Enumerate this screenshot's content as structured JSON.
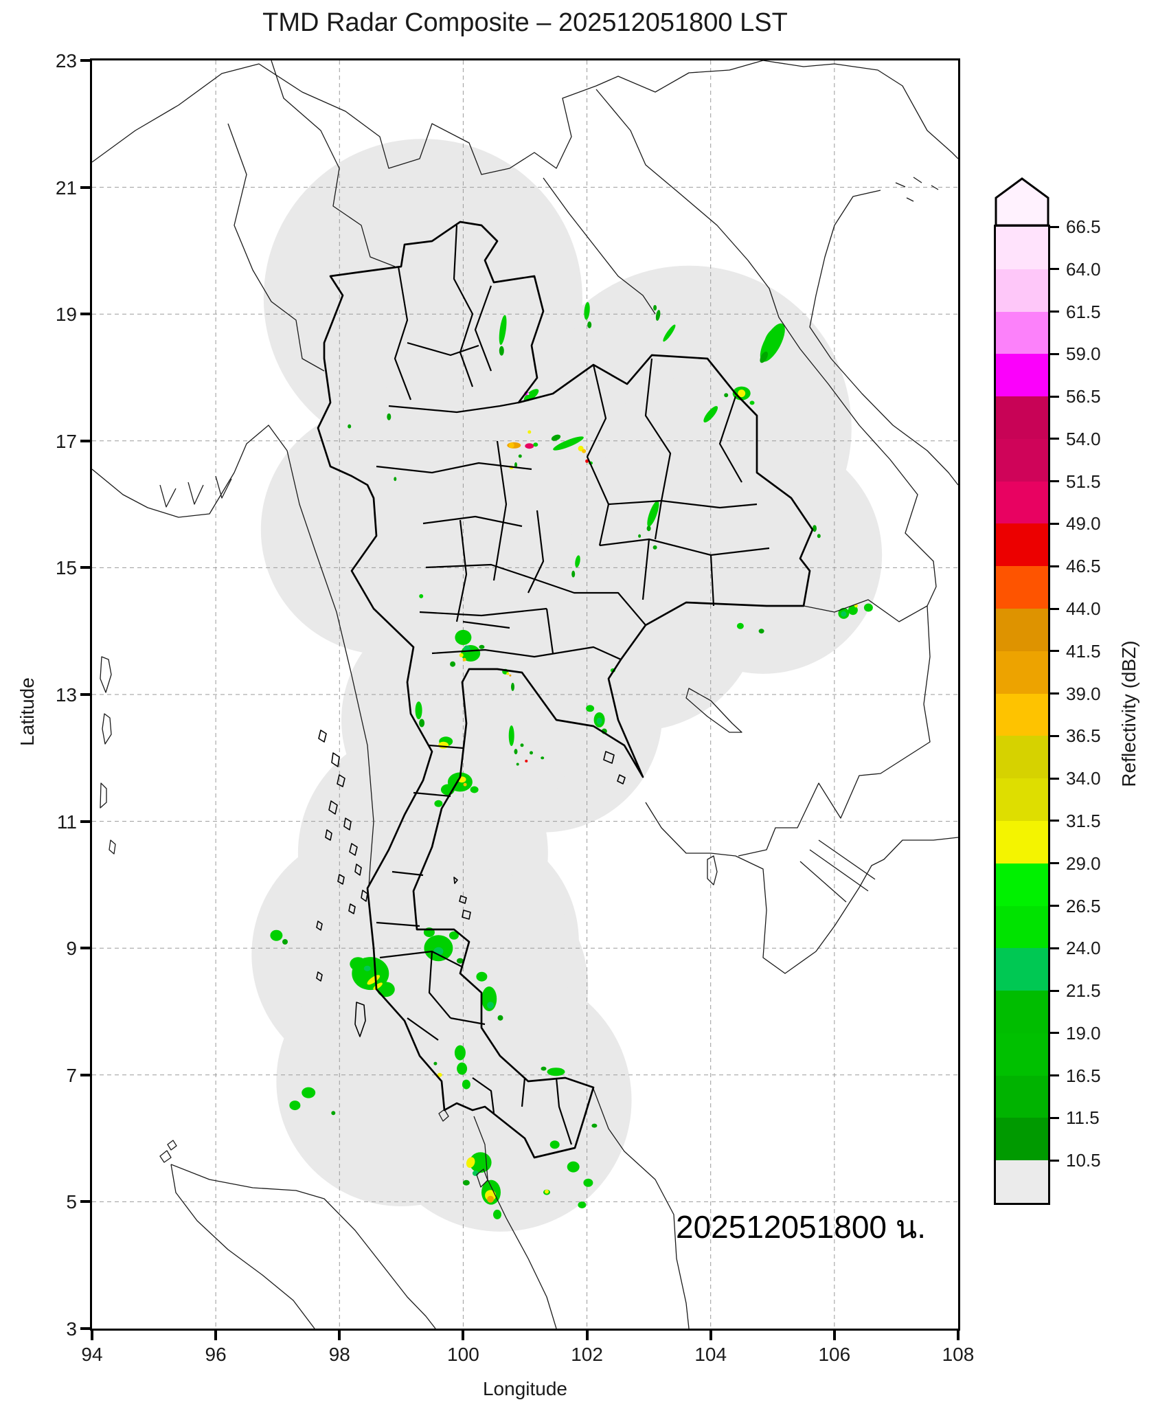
{
  "title": "TMD Radar Composite – 202512051800 LST",
  "timestamp_label": "202512051800 น.",
  "axes": {
    "xlabel": "Longitude",
    "ylabel": "Latitude",
    "x_range": [
      94,
      108
    ],
    "y_range": [
      3,
      23
    ],
    "x_ticks": [
      94,
      96,
      98,
      100,
      102,
      104,
      106,
      108
    ],
    "y_ticks": [
      3,
      5,
      7,
      9,
      11,
      13,
      15,
      17,
      19,
      21,
      23
    ],
    "grid_color": "#9a9a9a"
  },
  "colorbar": {
    "label": "Reflectivity (dBZ)",
    "tick_labels": [
      "66.5",
      "64.0",
      "61.5",
      "59.0",
      "56.5",
      "54.0",
      "51.5",
      "49.0",
      "46.5",
      "44.0",
      "41.5",
      "39.0",
      "36.5",
      "34.0",
      "31.5",
      "29.0",
      "26.5",
      "24.0",
      "21.5",
      "19.0",
      "16.5",
      "11.5",
      "10.5"
    ],
    "segment_colors_top_to_bottom": [
      "#ffe3fc",
      "#fec7f9",
      "#fc81fa",
      "#fb01fb",
      "#c80356",
      "#cf0459",
      "#e80261",
      "#ec0000",
      "#fe5400",
      "#de9300",
      "#eda300",
      "#fec300",
      "#d6d200",
      "#dede00",
      "#f4f400",
      "#00f100",
      "#00e300",
      "#00c853",
      "#00bd00",
      "#00c000",
      "#00b300",
      "#009a00",
      "#ebebeb"
    ],
    "arrow_color": "#fff2fe",
    "under_range_color": "#ebebeb"
  },
  "map": {
    "coverage_color": "#e9e9e9",
    "country_border_color": "#1a1a1a",
    "thailand_border_color": "#000000",
    "coverage_circles": [
      {
        "lon": 99.35,
        "lat": 19.25,
        "r": 2.55
      },
      {
        "lon": 103.65,
        "lat": 17.2,
        "r": 2.6
      },
      {
        "lon": 104.85,
        "lat": 15.2,
        "r": 1.9
      },
      {
        "lon": 102.2,
        "lat": 16.4,
        "r": 2.0
      },
      {
        "lon": 100.65,
        "lat": 17.15,
        "r": 2.0
      },
      {
        "lon": 98.75,
        "lat": 15.6,
        "r": 2.0
      },
      {
        "lon": 102.8,
        "lat": 14.4,
        "r": 2.0
      },
      {
        "lon": 101.2,
        "lat": 15.2,
        "r": 1.9
      },
      {
        "lon": 100.6,
        "lat": 13.9,
        "r": 2.0
      },
      {
        "lon": 101.3,
        "lat": 12.7,
        "r": 1.9
      },
      {
        "lon": 99.95,
        "lat": 12.6,
        "r": 1.9
      },
      {
        "lon": 99.35,
        "lat": 10.5,
        "r": 2.0
      },
      {
        "lon": 98.6,
        "lat": 8.9,
        "r": 2.0
      },
      {
        "lon": 99.95,
        "lat": 9.1,
        "r": 1.9
      },
      {
        "lon": 100.1,
        "lat": 8.4,
        "r": 1.9
      },
      {
        "lon": 100.6,
        "lat": 6.6,
        "r": 2.1
      },
      {
        "lon": 99.0,
        "lat": 6.9,
        "r": 2.0
      }
    ],
    "echo_palette": {
      "g1": "#00a600",
      "g2": "#00d000",
      "t": "#00c853",
      "y": "#f4f400",
      "a": "#fec300",
      "or": "#eda300",
      "r": "#ec0000",
      "c": "#e80261",
      "m": "#fb01fb",
      "p": "#ffc7f9"
    },
    "echoes": [
      [
        100.64,
        18.75,
        9,
        44,
        8,
        "g2"
      ],
      [
        100.62,
        18.42,
        7,
        14,
        0,
        "g1"
      ],
      [
        102.0,
        19.05,
        8,
        26,
        5,
        "g2"
      ],
      [
        102.04,
        18.83,
        6,
        10,
        0,
        "g1"
      ],
      [
        103.15,
        18.98,
        6,
        16,
        10,
        "g1"
      ],
      [
        103.1,
        19.1,
        5,
        8,
        0,
        "g1"
      ],
      [
        103.33,
        18.7,
        7,
        30,
        35,
        "g2"
      ],
      [
        105.0,
        18.55,
        24,
        62,
        28,
        "g2"
      ],
      [
        104.97,
        18.62,
        14,
        30,
        28,
        "g2"
      ],
      [
        104.86,
        18.32,
        9,
        18,
        28,
        "g1"
      ],
      [
        98.8,
        17.38,
        6,
        10,
        0,
        "g1"
      ],
      [
        98.16,
        17.23,
        5,
        6,
        0,
        "g1"
      ],
      [
        98.9,
        16.4,
        4,
        6,
        0,
        "g1"
      ],
      [
        104.5,
        17.75,
        26,
        20,
        0,
        "g2"
      ],
      [
        104.5,
        17.75,
        11,
        11,
        0,
        "y"
      ],
      [
        104.25,
        17.72,
        6,
        6,
        0,
        "g1"
      ],
      [
        104.67,
        17.6,
        7,
        6,
        0,
        "g2"
      ],
      [
        104.0,
        17.42,
        10,
        30,
        40,
        "g2"
      ],
      [
        101.1,
        17.72,
        26,
        11,
        -38,
        "g2"
      ],
      [
        101.02,
        17.75,
        6,
        6,
        0,
        "m"
      ],
      [
        101.05,
        17.74,
        3,
        3,
        0,
        "p"
      ],
      [
        101.7,
        16.96,
        48,
        10,
        -22,
        "g2"
      ],
      [
        101.5,
        17.05,
        14,
        8,
        -22,
        "g1"
      ],
      [
        101.9,
        16.88,
        8,
        8,
        0,
        "y"
      ],
      [
        101.95,
        16.84,
        6,
        6,
        0,
        "a"
      ],
      [
        102.0,
        16.68,
        5,
        5,
        0,
        "r"
      ],
      [
        102.06,
        16.65,
        6,
        5,
        0,
        "g2"
      ],
      [
        100.82,
        16.93,
        20,
        9,
        0,
        "or"
      ],
      [
        100.78,
        16.93,
        8,
        8,
        0,
        "a"
      ],
      [
        101.07,
        16.92,
        13,
        8,
        0,
        "c"
      ],
      [
        101.17,
        16.94,
        7,
        6,
        0,
        "g2"
      ],
      [
        101.07,
        17.14,
        5,
        5,
        0,
        "y"
      ],
      [
        100.92,
        16.76,
        5,
        5,
        0,
        "g1"
      ],
      [
        100.85,
        16.62,
        4,
        8,
        0,
        "g1"
      ],
      [
        100.78,
        16.58,
        6,
        5,
        0,
        "y"
      ],
      [
        103.07,
        15.85,
        11,
        40,
        20,
        "g2"
      ],
      [
        103.0,
        15.62,
        6,
        8,
        0,
        "g1"
      ],
      [
        105.68,
        15.62,
        6,
        10,
        0,
        "g1"
      ],
      [
        105.75,
        15.5,
        5,
        6,
        0,
        "g1"
      ],
      [
        103.1,
        15.32,
        6,
        6,
        0,
        "g1"
      ],
      [
        102.85,
        15.5,
        4,
        5,
        0,
        "g1"
      ],
      [
        101.85,
        15.1,
        7,
        18,
        10,
        "g2"
      ],
      [
        101.78,
        14.9,
        5,
        10,
        0,
        "g1"
      ],
      [
        106.15,
        14.28,
        16,
        16,
        0,
        "g2"
      ],
      [
        106.15,
        14.27,
        8,
        8,
        0,
        "t"
      ],
      [
        106.3,
        14.33,
        14,
        14,
        0,
        "g2"
      ],
      [
        106.35,
        14.4,
        5,
        5,
        0,
        "y"
      ],
      [
        106.55,
        14.37,
        13,
        12,
        0,
        "g2"
      ],
      [
        104.48,
        14.08,
        10,
        9,
        0,
        "g2"
      ],
      [
        104.82,
        14.0,
        8,
        7,
        0,
        "g1"
      ],
      [
        99.32,
        14.55,
        6,
        6,
        0,
        "g2"
      ],
      [
        100.0,
        13.9,
        24,
        22,
        0,
        "g2"
      ],
      [
        100.12,
        13.65,
        28,
        24,
        0,
        "g2"
      ],
      [
        100.06,
        13.72,
        10,
        10,
        0,
        "t"
      ],
      [
        99.97,
        13.62,
        6,
        6,
        0,
        "y"
      ],
      [
        100.02,
        13.55,
        5,
        5,
        0,
        "a"
      ],
      [
        99.83,
        13.48,
        8,
        8,
        0,
        "g1"
      ],
      [
        100.3,
        13.75,
        8,
        6,
        0,
        "g1"
      ],
      [
        100.68,
        13.36,
        9,
        8,
        0,
        "g2"
      ],
      [
        100.72,
        13.33,
        4,
        4,
        0,
        "y"
      ],
      [
        100.76,
        13.3,
        3,
        3,
        0,
        "or"
      ],
      [
        100.8,
        13.12,
        5,
        12,
        0,
        "g1"
      ],
      [
        102.42,
        13.38,
        7,
        6,
        0,
        "g2"
      ],
      [
        102.05,
        12.78,
        12,
        10,
        0,
        "g2"
      ],
      [
        102.2,
        12.6,
        16,
        22,
        0,
        "g2"
      ],
      [
        102.2,
        12.58,
        8,
        10,
        0,
        "t"
      ],
      [
        102.28,
        12.42,
        8,
        8,
        0,
        "g1"
      ],
      [
        99.28,
        12.75,
        10,
        26,
        0,
        "g2"
      ],
      [
        99.33,
        12.55,
        8,
        12,
        0,
        "g1"
      ],
      [
        100.78,
        12.35,
        8,
        30,
        0,
        "g2"
      ],
      [
        100.85,
        12.1,
        5,
        8,
        0,
        "g1"
      ],
      [
        99.72,
        12.26,
        20,
        14,
        0,
        "g2"
      ],
      [
        99.68,
        12.2,
        15,
        10,
        0,
        "y"
      ],
      [
        100.95,
        12.2,
        5,
        5,
        0,
        "g1"
      ],
      [
        101.1,
        12.08,
        5,
        5,
        0,
        "g1"
      ],
      [
        101.02,
        11.95,
        4,
        4,
        0,
        "r"
      ],
      [
        101.28,
        12.0,
        5,
        4,
        0,
        "g1"
      ],
      [
        100.88,
        11.9,
        4,
        4,
        0,
        "g1"
      ],
      [
        99.95,
        11.62,
        36,
        28,
        0,
        "g2"
      ],
      [
        99.98,
        11.66,
        12,
        9,
        0,
        "y"
      ],
      [
        100.03,
        11.58,
        5,
        5,
        0,
        "a"
      ],
      [
        99.75,
        11.5,
        20,
        16,
        0,
        "g2"
      ],
      [
        100.18,
        11.5,
        12,
        10,
        0,
        "g2"
      ],
      [
        99.6,
        11.28,
        12,
        10,
        0,
        "g2"
      ],
      [
        96.98,
        9.2,
        18,
        16,
        0,
        "g2"
      ],
      [
        97.12,
        9.1,
        8,
        8,
        0,
        "g1"
      ],
      [
        98.5,
        8.6,
        54,
        48,
        0,
        "g2"
      ],
      [
        98.3,
        8.75,
        24,
        20,
        0,
        "g2"
      ],
      [
        98.75,
        8.35,
        26,
        22,
        0,
        "g2"
      ],
      [
        98.55,
        8.5,
        22,
        8,
        -35,
        "y"
      ],
      [
        98.62,
        8.4,
        16,
        6,
        -35,
        "y"
      ],
      [
        98.45,
        8.68,
        10,
        8,
        0,
        "t"
      ],
      [
        99.6,
        9.0,
        42,
        38,
        0,
        "g2"
      ],
      [
        99.45,
        9.25,
        16,
        14,
        0,
        "g2"
      ],
      [
        99.85,
        9.2,
        14,
        12,
        0,
        "g2"
      ],
      [
        99.6,
        8.95,
        14,
        12,
        0,
        "t"
      ],
      [
        99.95,
        8.8,
        10,
        8,
        0,
        "g1"
      ],
      [
        100.42,
        8.2,
        22,
        36,
        0,
        "g2"
      ],
      [
        100.3,
        8.55,
        16,
        14,
        0,
        "g2"
      ],
      [
        100.44,
        8.1,
        10,
        10,
        0,
        "t"
      ],
      [
        100.6,
        7.9,
        8,
        8,
        0,
        "g1"
      ],
      [
        99.95,
        7.35,
        16,
        22,
        0,
        "g2"
      ],
      [
        99.98,
        7.1,
        15,
        18,
        0,
        "g2"
      ],
      [
        100.05,
        6.85,
        12,
        14,
        0,
        "g2"
      ],
      [
        99.62,
        7.0,
        7,
        6,
        0,
        "y"
      ],
      [
        99.55,
        7.18,
        5,
        5,
        0,
        "g1"
      ],
      [
        101.5,
        7.05,
        26,
        12,
        0,
        "g2"
      ],
      [
        101.3,
        7.1,
        8,
        6,
        0,
        "g1"
      ],
      [
        97.5,
        6.72,
        20,
        16,
        0,
        "g2"
      ],
      [
        97.28,
        6.52,
        16,
        14,
        0,
        "g2"
      ],
      [
        97.9,
        6.4,
        6,
        6,
        0,
        "g1"
      ],
      [
        100.28,
        5.62,
        32,
        30,
        0,
        "g2"
      ],
      [
        100.12,
        5.62,
        12,
        16,
        20,
        "y"
      ],
      [
        100.2,
        5.45,
        9,
        8,
        0,
        "t"
      ],
      [
        100.45,
        5.15,
        28,
        36,
        0,
        "g2"
      ],
      [
        100.44,
        5.1,
        16,
        16,
        0,
        "y"
      ],
      [
        100.44,
        5.04,
        10,
        10,
        0,
        "or"
      ],
      [
        100.55,
        4.8,
        12,
        14,
        0,
        "g2"
      ],
      [
        100.05,
        5.3,
        10,
        8,
        0,
        "g1"
      ],
      [
        101.48,
        5.9,
        14,
        12,
        0,
        "g2"
      ],
      [
        101.78,
        5.55,
        18,
        16,
        0,
        "g2"
      ],
      [
        102.02,
        5.3,
        14,
        12,
        0,
        "g2"
      ],
      [
        101.35,
        5.15,
        10,
        8,
        0,
        "g2"
      ],
      [
        101.35,
        5.16,
        6,
        6,
        0,
        "y"
      ],
      [
        101.92,
        4.95,
        12,
        10,
        0,
        "g2"
      ],
      [
        102.12,
        6.2,
        8,
        6,
        0,
        "g1"
      ]
    ]
  }
}
